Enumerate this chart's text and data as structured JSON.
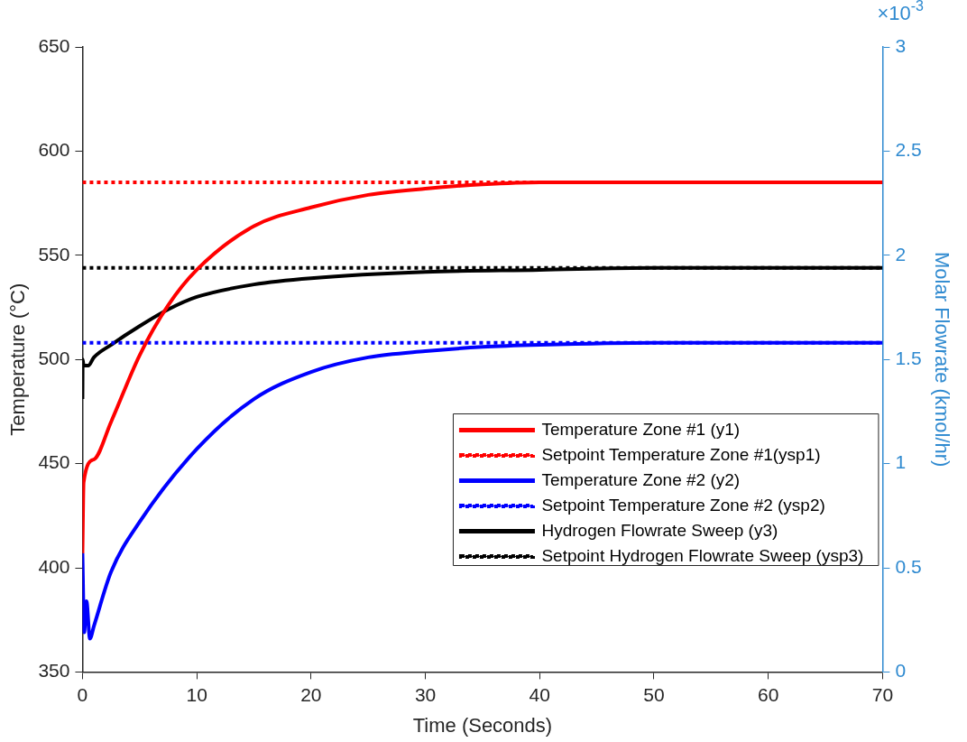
{
  "chart_data": {
    "type": "line",
    "xlabel": "Time (Seconds)",
    "ylabel": "Temperature (°C)",
    "y2label": "Molar Flowrate (kmol/hr)",
    "xlim": [
      0,
      70
    ],
    "xticks": [
      0,
      10,
      20,
      30,
      40,
      50,
      60,
      70
    ],
    "ylim": [
      350,
      650
    ],
    "yticks": [
      350,
      400,
      450,
      500,
      550,
      600,
      650
    ],
    "y2lim": [
      0,
      3
    ],
    "y2ticks": [
      0,
      0.5,
      1,
      1.5,
      2,
      2.5,
      3
    ],
    "annotations": [
      "×10$^{-3}$"
    ],
    "grid": false,
    "legend": "right",
    "marker": "none",
    "series": [
      {
        "name": "Temperature Zone #1 (y1)",
        "color": "#ff0000",
        "line_style": "solid",
        "x": [
          0,
          0.1,
          1,
          2.5,
          5,
          7.5,
          10,
          15,
          20,
          25,
          30,
          35,
          40,
          50,
          60,
          70
        ],
        "values": [
          407,
          441,
          452,
          470,
          502,
          526,
          543,
          564,
          573,
          579,
          582,
          584,
          585,
          585,
          585,
          585
        ]
      },
      {
        "name": "Setpoint Temperature Zone #1(ysp1)",
        "color": "#ff0000",
        "line_style": "dotted",
        "x": [
          0,
          70
        ],
        "values": [
          585,
          585
        ]
      },
      {
        "name": "Temperature Zone #2 (y2)",
        "color": "#0000ff",
        "line_style": "solid",
        "x": [
          0,
          0.15,
          0.35,
          0.65,
          1,
          2.5,
          5,
          10,
          15,
          20,
          25,
          30,
          35,
          40,
          50,
          60,
          70
        ],
        "values": [
          407,
          369,
          384,
          366,
          372,
          398,
          422,
          457,
          481,
          494,
          501,
          504,
          506,
          507,
          508,
          508,
          508
        ]
      },
      {
        "name": "Setpoint Temperature Zone #2 (ysp2)",
        "color": "#0000ff",
        "line_style": "dotted",
        "x": [
          0,
          70
        ],
        "values": [
          508,
          508
        ]
      },
      {
        "name": "Hydrogen Flowrate Sweep (y3)",
        "color": "#000000",
        "line_style": "solid",
        "axis": "y2",
        "x": [
          0,
          0.02,
          0.1,
          0.5,
          1,
          2.5,
          5,
          7.5,
          10,
          15,
          20,
          30,
          40,
          50,
          60,
          70
        ],
        "values": [
          1.31,
          1.5,
          1.47,
          1.47,
          1.51,
          1.57,
          1.66,
          1.74,
          1.8,
          1.86,
          1.89,
          1.92,
          1.93,
          1.94,
          1.94,
          1.94
        ]
      },
      {
        "name": "Setpoint Hydrogen Flowrate Sweep (ysp3)",
        "color": "#000000",
        "line_style": "dotted",
        "axis": "y2",
        "x": [
          0,
          70
        ],
        "values": [
          1.94,
          1.94
        ]
      }
    ]
  }
}
